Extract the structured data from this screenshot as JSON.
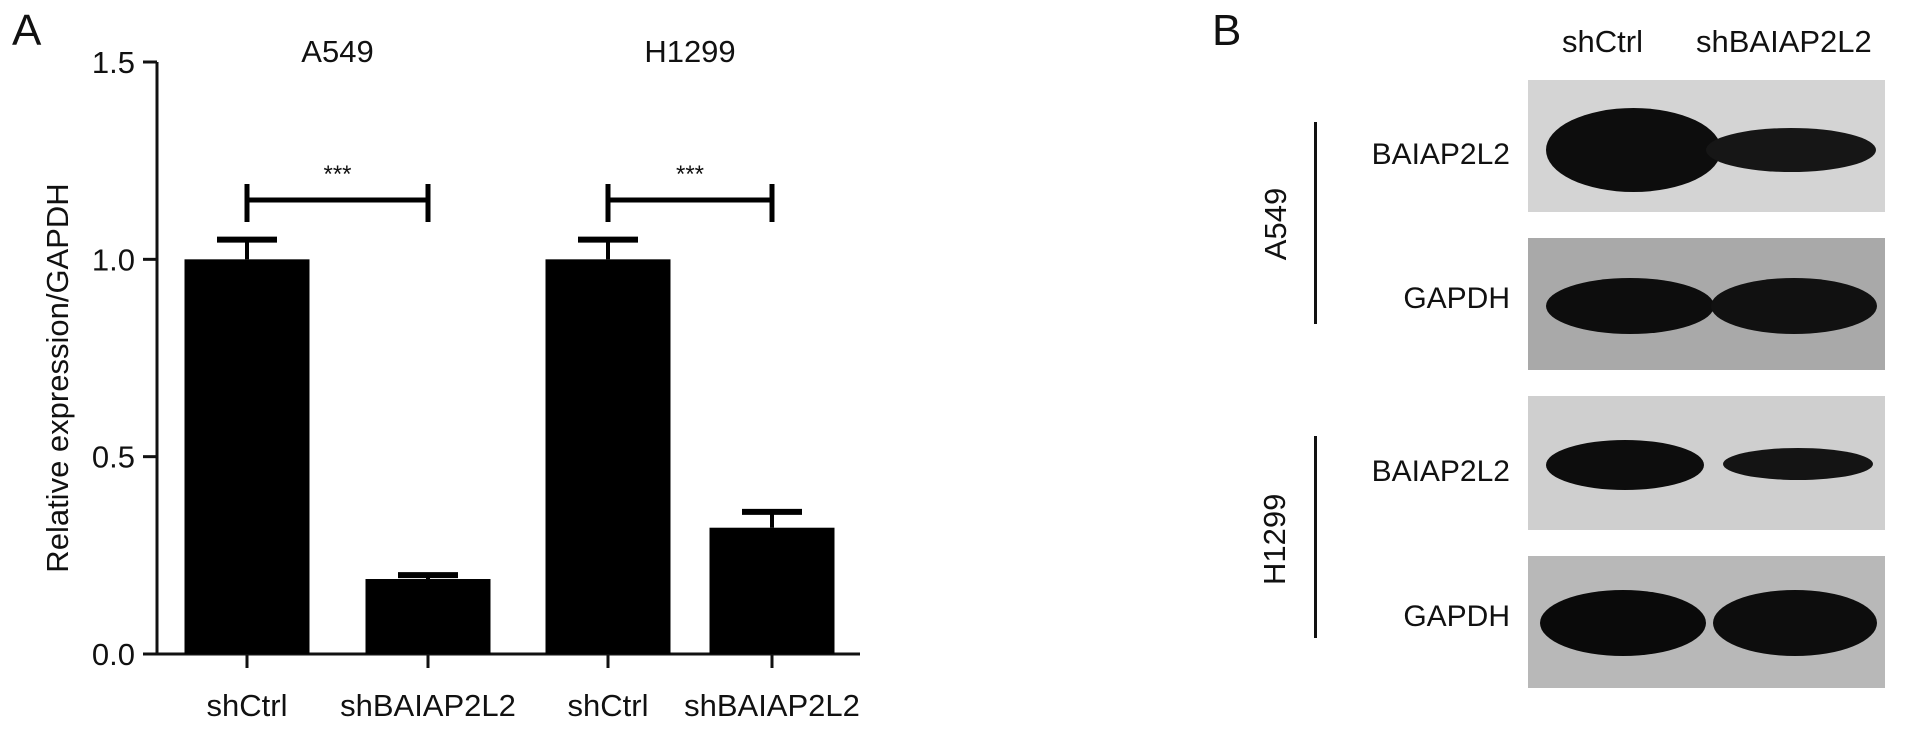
{
  "panel_a_letter": "A",
  "panel_b_letter": "B",
  "chart_data": {
    "type": "bar",
    "ylabel": "Relative expression/GAPDH",
    "ylim": [
      0,
      1.5
    ],
    "yticks": [
      "0.0",
      "0.5",
      "1.0",
      "1.5"
    ],
    "groups": [
      {
        "name": "A549",
        "categories": [
          "shCtrl",
          "shBAIAP2L2"
        ],
        "values": [
          1.0,
          0.19
        ],
        "errors": [
          0.05,
          0.01
        ],
        "significance": "***"
      },
      {
        "name": "H1299",
        "categories": [
          "shCtrl",
          "shBAIAP2L2"
        ],
        "values": [
          1.0,
          0.32
        ],
        "errors": [
          0.05,
          0.04
        ],
        "significance": "***"
      }
    ]
  },
  "western_blot": {
    "columns": [
      "shCtrl",
      "shBAIAP2L2"
    ],
    "cell_lines": [
      {
        "name": "A549",
        "rows": [
          "BAIAP2L2",
          "GAPDH"
        ]
      },
      {
        "name": "H1299",
        "rows": [
          "BAIAP2L2",
          "GAPDH"
        ]
      }
    ]
  }
}
